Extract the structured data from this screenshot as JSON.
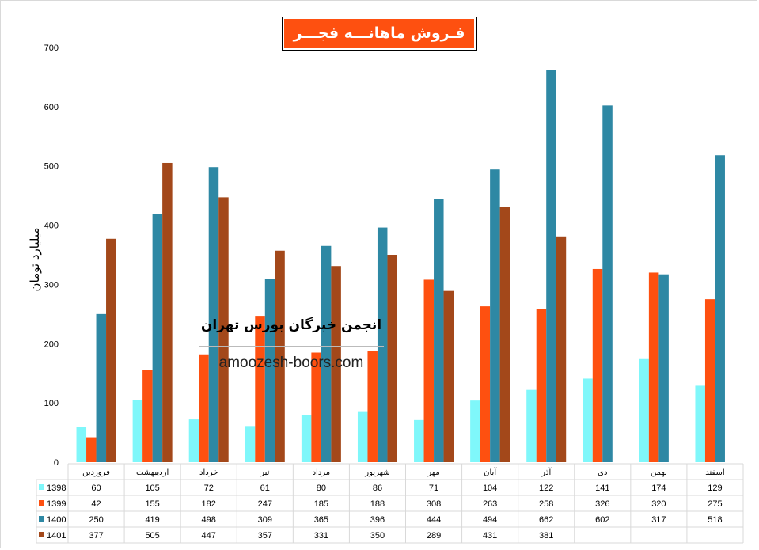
{
  "chart_data": {
    "type": "bar",
    "title": "فـروش ماهانـــه فجـــر",
    "ylabel": "میلیارد تومان",
    "xlabel": "",
    "ylim": [
      0,
      700
    ],
    "yticks": [
      0,
      100,
      200,
      300,
      400,
      500,
      600,
      700
    ],
    "grid": false,
    "legend": "data-table",
    "categories": [
      "فروردین",
      "اردیبهشت",
      "خرداد",
      "تیر",
      "مرداد",
      "شهریور",
      "مهر",
      "آبان",
      "آذر",
      "دی",
      "بهمن",
      "اسفند"
    ],
    "series": [
      {
        "name": "1398",
        "color": "#7ff7fa",
        "values": [
          60,
          105,
          72,
          61,
          80,
          86,
          71,
          104,
          122,
          141,
          174,
          129
        ]
      },
      {
        "name": "1399",
        "color": "#fe5010",
        "values": [
          42,
          155,
          182,
          247,
          185,
          188,
          308,
          263,
          258,
          326,
          320,
          275
        ]
      },
      {
        "name": "1400",
        "color": "#2e88a4",
        "values": [
          250,
          419,
          498,
          309,
          365,
          396,
          444,
          494,
          662,
          602,
          317,
          518
        ]
      },
      {
        "name": "1401",
        "color": "#a3481a",
        "values": [
          377,
          505,
          447,
          357,
          331,
          350,
          289,
          431,
          381,
          null,
          null,
          null
        ]
      }
    ]
  },
  "watermark": {
    "line1": "انجمن خبرگان بورس تهران",
    "line2": "amoozesh-boors.com"
  }
}
